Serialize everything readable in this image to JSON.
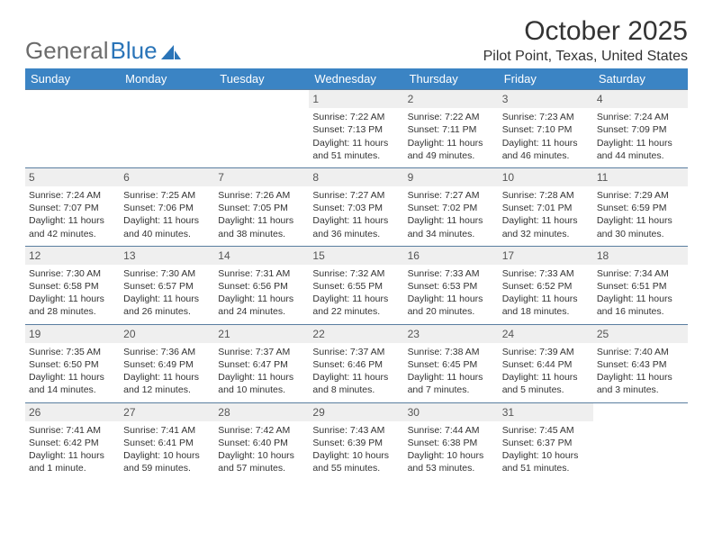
{
  "brand": {
    "part1": "General",
    "part2": "Blue",
    "logo_color": "#2a74b8"
  },
  "title": "October 2025",
  "location": "Pilot Point, Texas, United States",
  "colors": {
    "header_bg": "#3b84c4",
    "header_text": "#ffffff",
    "row_border": "#5a7ea0",
    "daynum_bg": "#efefef",
    "text": "#333333"
  },
  "dayNames": [
    "Sunday",
    "Monday",
    "Tuesday",
    "Wednesday",
    "Thursday",
    "Friday",
    "Saturday"
  ],
  "weeks": [
    [
      {
        "n": "",
        "t": ""
      },
      {
        "n": "",
        "t": ""
      },
      {
        "n": "",
        "t": ""
      },
      {
        "n": "1",
        "t": "Sunrise: 7:22 AM\nSunset: 7:13 PM\nDaylight: 11 hours and 51 minutes."
      },
      {
        "n": "2",
        "t": "Sunrise: 7:22 AM\nSunset: 7:11 PM\nDaylight: 11 hours and 49 minutes."
      },
      {
        "n": "3",
        "t": "Sunrise: 7:23 AM\nSunset: 7:10 PM\nDaylight: 11 hours and 46 minutes."
      },
      {
        "n": "4",
        "t": "Sunrise: 7:24 AM\nSunset: 7:09 PM\nDaylight: 11 hours and 44 minutes."
      }
    ],
    [
      {
        "n": "5",
        "t": "Sunrise: 7:24 AM\nSunset: 7:07 PM\nDaylight: 11 hours and 42 minutes."
      },
      {
        "n": "6",
        "t": "Sunrise: 7:25 AM\nSunset: 7:06 PM\nDaylight: 11 hours and 40 minutes."
      },
      {
        "n": "7",
        "t": "Sunrise: 7:26 AM\nSunset: 7:05 PM\nDaylight: 11 hours and 38 minutes."
      },
      {
        "n": "8",
        "t": "Sunrise: 7:27 AM\nSunset: 7:03 PM\nDaylight: 11 hours and 36 minutes."
      },
      {
        "n": "9",
        "t": "Sunrise: 7:27 AM\nSunset: 7:02 PM\nDaylight: 11 hours and 34 minutes."
      },
      {
        "n": "10",
        "t": "Sunrise: 7:28 AM\nSunset: 7:01 PM\nDaylight: 11 hours and 32 minutes."
      },
      {
        "n": "11",
        "t": "Sunrise: 7:29 AM\nSunset: 6:59 PM\nDaylight: 11 hours and 30 minutes."
      }
    ],
    [
      {
        "n": "12",
        "t": "Sunrise: 7:30 AM\nSunset: 6:58 PM\nDaylight: 11 hours and 28 minutes."
      },
      {
        "n": "13",
        "t": "Sunrise: 7:30 AM\nSunset: 6:57 PM\nDaylight: 11 hours and 26 minutes."
      },
      {
        "n": "14",
        "t": "Sunrise: 7:31 AM\nSunset: 6:56 PM\nDaylight: 11 hours and 24 minutes."
      },
      {
        "n": "15",
        "t": "Sunrise: 7:32 AM\nSunset: 6:55 PM\nDaylight: 11 hours and 22 minutes."
      },
      {
        "n": "16",
        "t": "Sunrise: 7:33 AM\nSunset: 6:53 PM\nDaylight: 11 hours and 20 minutes."
      },
      {
        "n": "17",
        "t": "Sunrise: 7:33 AM\nSunset: 6:52 PM\nDaylight: 11 hours and 18 minutes."
      },
      {
        "n": "18",
        "t": "Sunrise: 7:34 AM\nSunset: 6:51 PM\nDaylight: 11 hours and 16 minutes."
      }
    ],
    [
      {
        "n": "19",
        "t": "Sunrise: 7:35 AM\nSunset: 6:50 PM\nDaylight: 11 hours and 14 minutes."
      },
      {
        "n": "20",
        "t": "Sunrise: 7:36 AM\nSunset: 6:49 PM\nDaylight: 11 hours and 12 minutes."
      },
      {
        "n": "21",
        "t": "Sunrise: 7:37 AM\nSunset: 6:47 PM\nDaylight: 11 hours and 10 minutes."
      },
      {
        "n": "22",
        "t": "Sunrise: 7:37 AM\nSunset: 6:46 PM\nDaylight: 11 hours and 8 minutes."
      },
      {
        "n": "23",
        "t": "Sunrise: 7:38 AM\nSunset: 6:45 PM\nDaylight: 11 hours and 7 minutes."
      },
      {
        "n": "24",
        "t": "Sunrise: 7:39 AM\nSunset: 6:44 PM\nDaylight: 11 hours and 5 minutes."
      },
      {
        "n": "25",
        "t": "Sunrise: 7:40 AM\nSunset: 6:43 PM\nDaylight: 11 hours and 3 minutes."
      }
    ],
    [
      {
        "n": "26",
        "t": "Sunrise: 7:41 AM\nSunset: 6:42 PM\nDaylight: 11 hours and 1 minute."
      },
      {
        "n": "27",
        "t": "Sunrise: 7:41 AM\nSunset: 6:41 PM\nDaylight: 10 hours and 59 minutes."
      },
      {
        "n": "28",
        "t": "Sunrise: 7:42 AM\nSunset: 6:40 PM\nDaylight: 10 hours and 57 minutes."
      },
      {
        "n": "29",
        "t": "Sunrise: 7:43 AM\nSunset: 6:39 PM\nDaylight: 10 hours and 55 minutes."
      },
      {
        "n": "30",
        "t": "Sunrise: 7:44 AM\nSunset: 6:38 PM\nDaylight: 10 hours and 53 minutes."
      },
      {
        "n": "31",
        "t": "Sunrise: 7:45 AM\nSunset: 6:37 PM\nDaylight: 10 hours and 51 minutes."
      },
      {
        "n": "",
        "t": ""
      }
    ]
  ]
}
